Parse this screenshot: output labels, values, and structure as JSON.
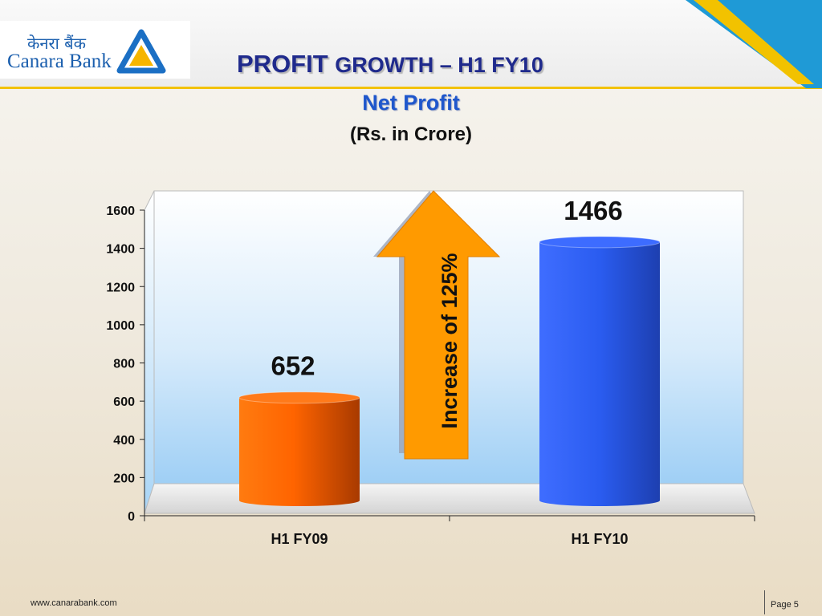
{
  "logo": {
    "hindi": "केनरा बैंक",
    "english": "Canara Bank"
  },
  "title": {
    "bold": "PROFIT",
    "rest": "GROWTH – H1 FY10"
  },
  "subtitle": "Net Profit",
  "units": "(Rs. in Crore)",
  "annotation": "Increase of 125%",
  "footer": {
    "url": "www.canarabank.com",
    "page": "Page  5"
  },
  "colors": {
    "title": "#1f2a8c",
    "subtitle": "#1f57cc",
    "bar1": "#ff6a00",
    "bar2": "#2a5cf0",
    "arrow": "#ff9a00",
    "accent": "#f2c200"
  },
  "chart_data": {
    "type": "bar",
    "style": "3d-cylinder",
    "categories": [
      "H1 FY09",
      "H1 FY10"
    ],
    "values": [
      652,
      1466
    ],
    "data_labels": [
      "652",
      "1466"
    ],
    "ylim": [
      0,
      1600
    ],
    "yticks": [
      0,
      200,
      400,
      600,
      800,
      1000,
      1200,
      1400,
      1600
    ],
    "grid": false,
    "legend": "none"
  }
}
